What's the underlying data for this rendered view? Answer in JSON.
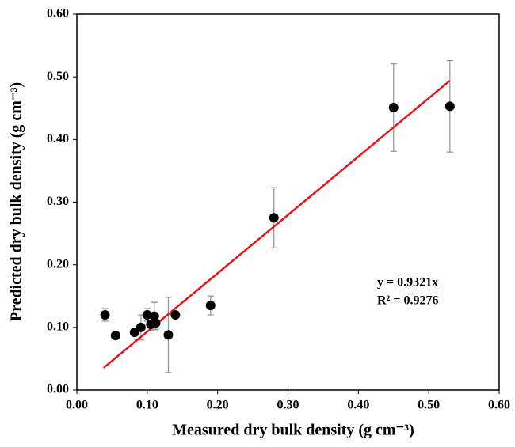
{
  "chart_data": {
    "type": "scatter",
    "xlabel": "Measured dry bulk density (g cm⁻³)",
    "ylabel": "Predicted dry bulk density (g cm⁻³)",
    "x": [
      0.04,
      0.055,
      0.082,
      0.091,
      0.1,
      0.105,
      0.11,
      0.112,
      0.13,
      0.14,
      0.19,
      0.28,
      0.45,
      0.53
    ],
    "series": [
      {
        "color": "#000000",
        "values": [
          0.12,
          0.087,
          0.092,
          0.1,
          0.12,
          0.105,
          0.118,
          0.107,
          0.088,
          0.12,
          0.135,
          0.275,
          0.451,
          0.453
        ],
        "errors": [
          0.01,
          0.005,
          0.005,
          0.02,
          0.01,
          0.01,
          0.022,
          0.01,
          0.06,
          0.005,
          0.015,
          0.048,
          0.07,
          0.073
        ]
      }
    ],
    "trendline": {
      "slope": 0.9321,
      "x": [
        0.038,
        0.53
      ],
      "color": "#e8141b"
    },
    "annotations": [
      "y = 0.9321x",
      "R² = 0.9276"
    ],
    "xlim": [
      0,
      0.6
    ],
    "ylim": [
      0,
      0.6
    ],
    "xticks": [
      {
        "value": 0,
        "label": "0.00"
      },
      {
        "value": 0.1,
        "label": "0.10"
      },
      {
        "value": 0.2,
        "label": "0.20"
      },
      {
        "value": 0.3,
        "label": "0.30"
      },
      {
        "value": 0.4,
        "label": "0.40"
      },
      {
        "value": 0.5,
        "label": "0.50"
      },
      {
        "value": 0.6,
        "label": "0.60"
      }
    ],
    "yticks": [
      {
        "value": 0,
        "label": "0.00"
      },
      {
        "value": 0.1,
        "label": "0.10"
      },
      {
        "value": 0.2,
        "label": "0.20"
      },
      {
        "value": 0.3,
        "label": "0.30"
      },
      {
        "value": 0.4,
        "label": "0.40"
      },
      {
        "value": 0.5,
        "label": "0.50"
      },
      {
        "value": 0.6,
        "label": "0.60"
      }
    ]
  }
}
